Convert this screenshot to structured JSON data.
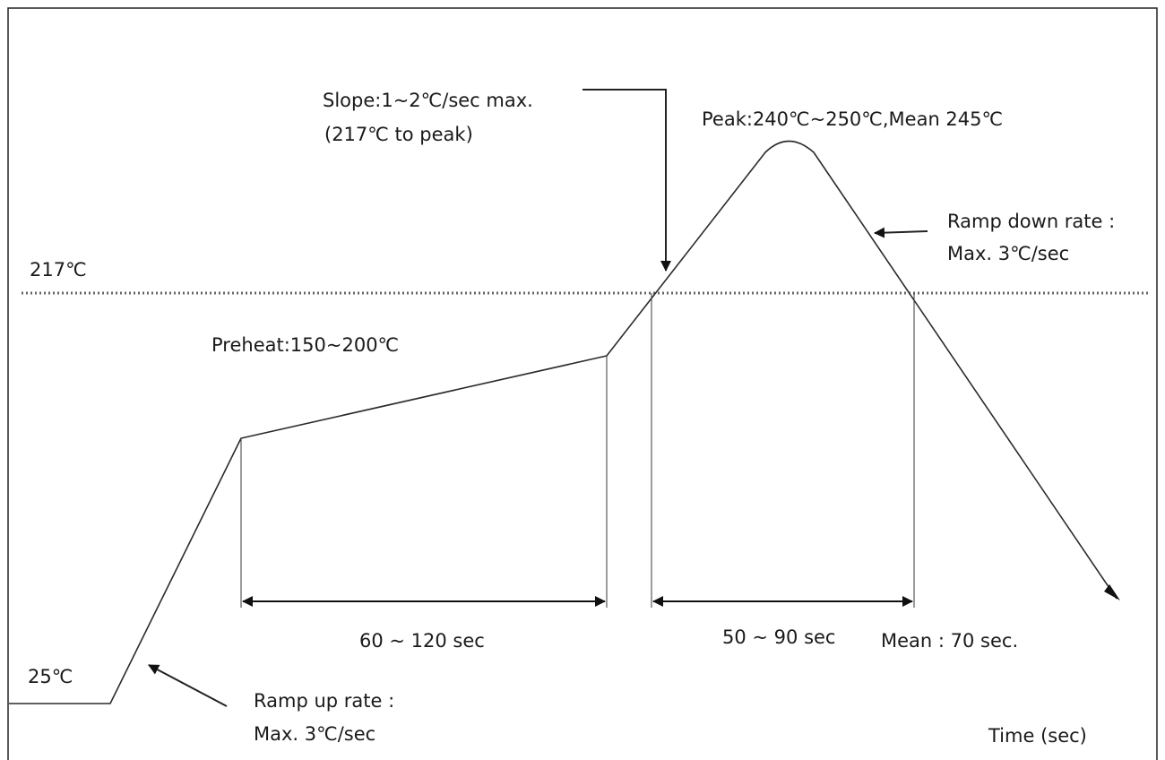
{
  "diagram": {
    "temp_217_label": "217℃",
    "temp_25_label": "25℃",
    "slope_line1": "Slope:1~2℃/sec max.",
    "slope_line2": "(217℃ to peak)",
    "peak_label": "Peak:240℃~250℃,Mean 245℃",
    "ramp_down_line1": "Ramp down rate :",
    "ramp_down_line2": "Max. 3℃/sec",
    "preheat_label": "Preheat:150~200℃",
    "preheat_time_label": "60 ~ 120 sec",
    "reflow_time_label": "50 ~ 90 sec",
    "reflow_mean_label": "Mean : 70 sec.",
    "ramp_up_line1": "Ramp up rate :",
    "ramp_up_line2": "Max. 3℃/sec",
    "x_axis_label": "Time (sec)"
  }
}
